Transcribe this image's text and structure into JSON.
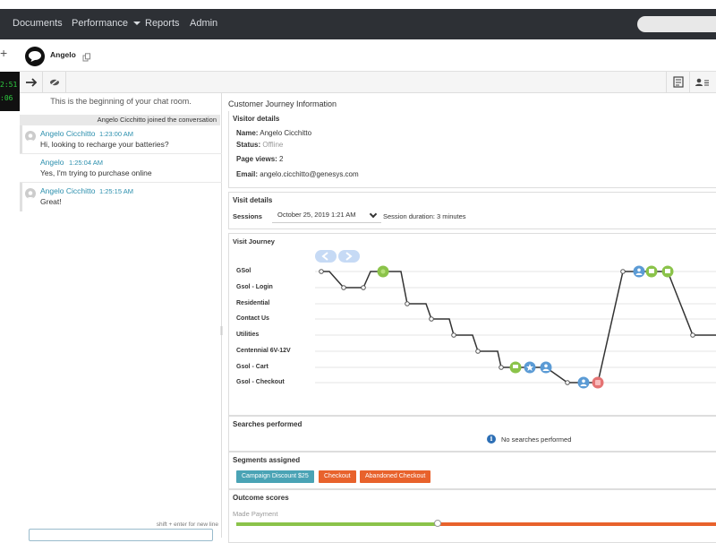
{
  "nav": {
    "items": [
      "Documents",
      "Performance",
      "Reports",
      "Admin"
    ]
  },
  "clock": {
    "line1": "2:51",
    "line2": ":06"
  },
  "header": {
    "name": "Angelo"
  },
  "chat": {
    "begin_text": "This is the beginning of your chat room.",
    "joined_text": "Angelo Cicchitto joined the conversation",
    "messages": [
      {
        "name": "Angelo Cicchitto",
        "time": "1:23:00 AM",
        "text": "Hi, looking to recharge your batteries?",
        "has_avatar": true
      },
      {
        "name": "Angelo",
        "time": "1:25:04 AM",
        "text": "Yes, I'm trying to purchase online",
        "has_avatar": false
      },
      {
        "name": "Angelo Cicchitto",
        "time": "1:25:15 AM",
        "text": "Great!",
        "has_avatar": true
      }
    ],
    "input_hint": "shift + enter for new line"
  },
  "journey": {
    "title": "Customer Journey Information",
    "visitor": {
      "title": "Visitor details",
      "name_label": "Name:",
      "name_value": "Angelo Cicchitto",
      "status_label": "Status:",
      "status_value": "Offline",
      "pageviews_label": "Page views:",
      "pageviews_value": "2",
      "email_label": "Email:",
      "email_value": "angelo.cicchitto@genesys.com"
    },
    "visit": {
      "title": "Visit details",
      "sessions_label": "Sessions",
      "session_value": "October 25, 2019 1:21 AM",
      "duration_text": "Session duration: 3 minutes"
    },
    "visit_journey": {
      "title": "Visit Journey",
      "pages": [
        "GSol",
        "Gsol - Login",
        "Residential",
        "Contact Us",
        "Utilities",
        "Centennial 6V-12V",
        "Gsol - Cart",
        "Gsol - Checkout"
      ]
    },
    "searches": {
      "title": "Searches performed",
      "text": "No searches performed"
    },
    "segments": {
      "title": "Segments assigned",
      "items": [
        {
          "label": "Campaign Discount $25",
          "color": "#4aa3b5"
        },
        {
          "label": "Checkout",
          "color": "#e8622c"
        },
        {
          "label": "Abandoned Checkout",
          "color": "#e8622c"
        }
      ]
    },
    "outcomes": {
      "title": "Outcome scores",
      "item_label": "Made Payment",
      "score": 0.42
    }
  }
}
